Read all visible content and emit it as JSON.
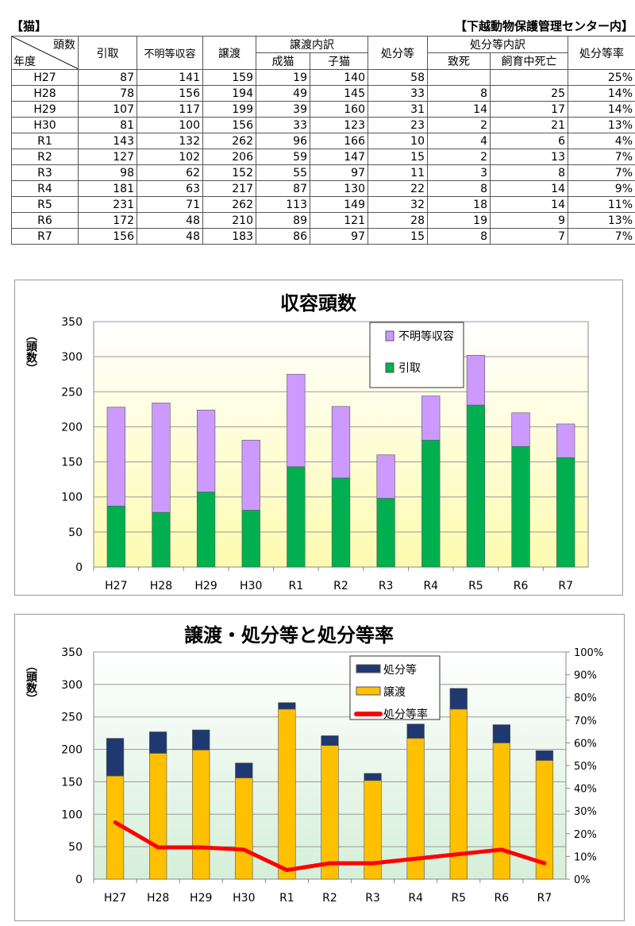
{
  "header": {
    "left": "【猫】",
    "right": "【下越動物保護管理センター内】"
  },
  "table": {
    "corner_top": "頭数",
    "corner_bottom": "年度",
    "columns": [
      "引取",
      "不明等収容",
      "譲渡",
      "譲渡内訳",
      "処分等",
      "処分等内訳",
      "処分等率"
    ],
    "sub_columns": {
      "transfer": [
        "成猫",
        "子猫"
      ],
      "disposal": [
        "致死",
        "飼育中死亡"
      ]
    },
    "rows": [
      [
        "H27",
        "87",
        "141",
        "159",
        "19",
        "140",
        "58",
        "",
        "",
        "25%"
      ],
      [
        "H28",
        "78",
        "156",
        "194",
        "49",
        "145",
        "33",
        "8",
        "25",
        "14%"
      ],
      [
        "H29",
        "107",
        "117",
        "199",
        "39",
        "160",
        "31",
        "14",
        "17",
        "14%"
      ],
      [
        "H30",
        "81",
        "100",
        "156",
        "33",
        "123",
        "23",
        "2",
        "21",
        "13%"
      ],
      [
        "R1",
        "143",
        "132",
        "262",
        "96",
        "166",
        "10",
        "4",
        "6",
        "4%"
      ],
      [
        "R2",
        "127",
        "102",
        "206",
        "59",
        "147",
        "15",
        "2",
        "13",
        "7%"
      ],
      [
        "R3",
        "98",
        "62",
        "152",
        "55",
        "97",
        "11",
        "3",
        "8",
        "7%"
      ],
      [
        "R4",
        "181",
        "63",
        "217",
        "87",
        "130",
        "22",
        "8",
        "14",
        "9%"
      ],
      [
        "R5",
        "231",
        "71",
        "262",
        "113",
        "149",
        "32",
        "18",
        "14",
        "11%"
      ],
      [
        "R6",
        "172",
        "48",
        "210",
        "89",
        "121",
        "28",
        "19",
        "9",
        "13%"
      ],
      [
        "R7",
        "156",
        "48",
        "183",
        "86",
        "97",
        "15",
        "8",
        "7",
        "7%"
      ]
    ]
  },
  "chart_data": [
    {
      "type": "bar",
      "stacked": true,
      "title": "収容頭数",
      "ylabel": "（頭数）",
      "ylim": [
        0,
        350
      ],
      "yticks": [
        0,
        50,
        100,
        150,
        200,
        250,
        300,
        350
      ],
      "categories": [
        "H27",
        "H28",
        "H29",
        "H30",
        "R1",
        "R2",
        "R3",
        "R4",
        "R5",
        "R6",
        "R7"
      ],
      "series": [
        {
          "name": "引取",
          "color": "#00b050",
          "values": [
            87,
            78,
            107,
            81,
            143,
            127,
            98,
            181,
            231,
            172,
            156
          ]
        },
        {
          "name": "不明等収容",
          "color": "#cc99ff",
          "values": [
            141,
            156,
            117,
            100,
            132,
            102,
            62,
            63,
            71,
            48,
            48
          ]
        }
      ],
      "legend": "top-right",
      "grid": true,
      "background": "#fdfbb0"
    },
    {
      "type": "bar+line",
      "stacked": true,
      "title": "譲渡・処分等と処分等率",
      "ylabel": "（頭数）",
      "ylim": [
        0,
        350
      ],
      "yticks": [
        0,
        50,
        100,
        150,
        200,
        250,
        300,
        350
      ],
      "y2lim": [
        0,
        100
      ],
      "y2ticks": [
        "0%",
        "10%",
        "20%",
        "30%",
        "40%",
        "50%",
        "60%",
        "70%",
        "80%",
        "90%",
        "100%"
      ],
      "categories": [
        "H27",
        "H28",
        "H29",
        "H30",
        "R1",
        "R2",
        "R3",
        "R4",
        "R5",
        "R6",
        "R7"
      ],
      "series": [
        {
          "name": "譲渡",
          "color": "#ffc000",
          "values": [
            159,
            194,
            199,
            156,
            262,
            206,
            152,
            217,
            262,
            210,
            183
          ]
        },
        {
          "name": "処分等",
          "color": "#1f3870",
          "values": [
            58,
            33,
            31,
            23,
            10,
            15,
            11,
            22,
            32,
            28,
            15
          ]
        },
        {
          "name": "処分等率",
          "color": "#ff0000",
          "axis": "right",
          "values": [
            25,
            14,
            14,
            13,
            4,
            7,
            7,
            9,
            11,
            13,
            7
          ]
        }
      ],
      "legend": "top-right",
      "grid": true,
      "background": "#d5efd9"
    }
  ]
}
